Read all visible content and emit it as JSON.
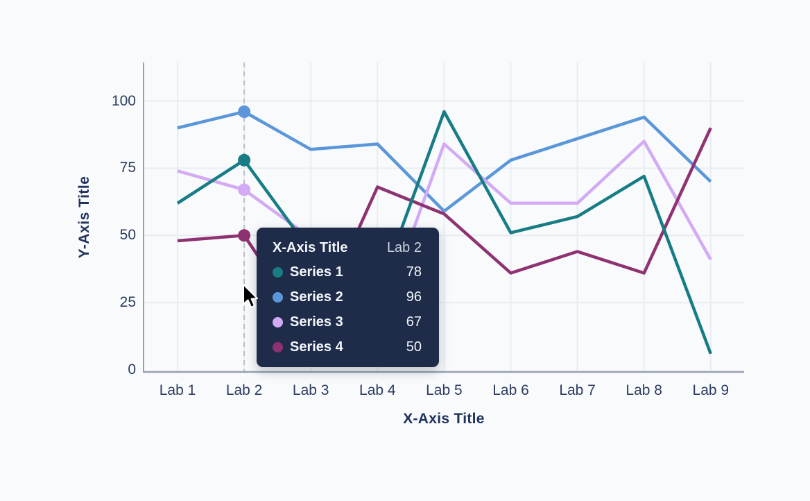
{
  "page": {
    "background": "#f8fafc"
  },
  "chart_data": {
    "type": "line",
    "title": "",
    "xlabel": "X-Axis Title",
    "ylabel": "Y-Axis Title",
    "categories": [
      "Lab 1",
      "Lab 2",
      "Lab 3",
      "Lab 4",
      "Lab 5",
      "Lab 6",
      "Lab 7",
      "Lab 8",
      "Lab 9"
    ],
    "y_ticks": [
      0,
      25,
      50,
      75,
      100
    ],
    "ylim": [
      0,
      114
    ],
    "grid": true,
    "legend_position": "none",
    "hover_index": 1,
    "series": [
      {
        "name": "Series 1",
        "color": "#177c84",
        "values": [
          62,
          78,
          44,
          28,
          96,
          51,
          57,
          72,
          6
        ]
      },
      {
        "name": "Series 2",
        "color": "#5b97d8",
        "values": [
          90,
          96,
          82,
          84,
          59,
          78,
          86,
          94,
          70
        ]
      },
      {
        "name": "Series 3",
        "color": "#d3aaf4",
        "values": [
          74,
          67,
          49,
          15,
          84,
          62,
          62,
          85,
          41
        ]
      },
      {
        "name": "Series 4",
        "color": "#8e3271",
        "values": [
          48,
          50,
          13,
          68,
          58,
          36,
          44,
          36,
          90
        ]
      }
    ]
  },
  "tooltip": {
    "header_label": "X-Axis Title",
    "header_value": "Lab 2",
    "rows": [
      {
        "label": "Series 1",
        "value": "78",
        "color": "#177c84"
      },
      {
        "label": "Series 2",
        "value": "96",
        "color": "#5b97d8"
      },
      {
        "label": "Series 3",
        "value": "67",
        "color": "#d3aaf4"
      },
      {
        "label": "Series 4",
        "value": "50",
        "color": "#8e3271"
      }
    ],
    "bg_color": "#1f2c49",
    "text_color": "#f2f5fa",
    "header_value_color": "#ccd4e2"
  },
  "colors": {
    "grid": "#e9edf3",
    "axis_line": "#98a1af",
    "tick_text": "#2d3c5e",
    "title_text": "#20315b",
    "hover_line": "#b9bfc8",
    "cursor_fill": "#000000",
    "cursor_outline": "#ffffff"
  }
}
